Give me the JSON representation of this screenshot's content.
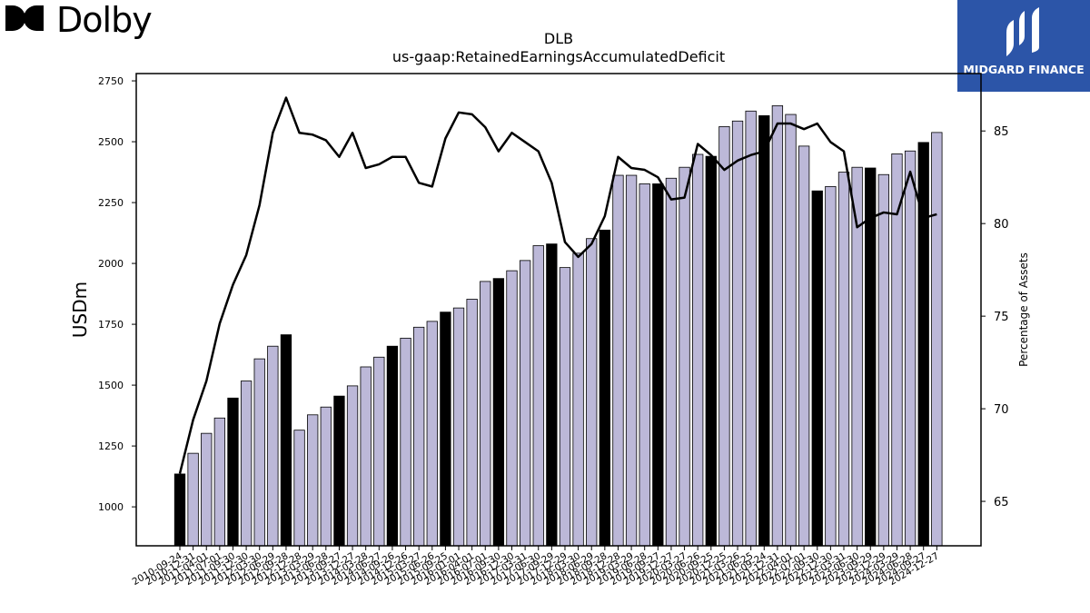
{
  "brand": {
    "company": "Dolby",
    "badge": "MIDGARD FINANCE"
  },
  "chart_data": {
    "type": "bar",
    "title": "DLB",
    "subtitle": "us-gaap:RetainedEarningsAccumulatedDeficit",
    "ylabel": "USDm",
    "y2label": "Percentage of Assets",
    "ylim": [
      840,
      2780
    ],
    "y2lim": [
      62.6,
      88.1
    ],
    "yticks": [
      1000,
      1250,
      1500,
      1750,
      2000,
      2250,
      2500,
      2750
    ],
    "y2ticks": [
      65,
      70,
      75,
      80,
      85
    ],
    "colors": {
      "quarter": "#bcb8d8",
      "annual": "#000000",
      "line": "#000000"
    },
    "categories": [
      "2010-09-24",
      "2010-12-31",
      "2011-04-01",
      "2011-07-01",
      "2011-09-30",
      "2011-12-30",
      "2012-03-30",
      "2012-06-29",
      "2012-09-28",
      "2012-12-28",
      "2013-03-29",
      "2013-06-28",
      "2013-09-27",
      "2013-12-27",
      "2014-03-28",
      "2014-06-27",
      "2014-09-26",
      "2014-12-26",
      "2015-03-27",
      "2015-06-26",
      "2015-09-25",
      "2016-01-01",
      "2016-04-01",
      "2016-07-01",
      "2016-09-30",
      "2016-12-30",
      "2017-03-31",
      "2017-06-30",
      "2017-09-29",
      "2017-12-29",
      "2018-03-30",
      "2018-06-29",
      "2018-09-28",
      "2018-12-28",
      "2019-03-29",
      "2019-06-28",
      "2019-09-27",
      "2019-12-27",
      "2020-03-27",
      "2020-06-26",
      "2020-09-25",
      "2020-12-25",
      "2021-03-26",
      "2021-06-25",
      "2021-09-24",
      "2021-12-31",
      "2022-04-01",
      "2022-07-01",
      "2022-09-30",
      "2022-12-30",
      "2023-03-31",
      "2023-06-30",
      "2023-09-29",
      "2023-12-29",
      "2024-03-29",
      "2024-06-28",
      "2024-09-27",
      "2024-12-27"
    ],
    "xtick_labels_shown": [
      "2010-09-24",
      "2010-12-31",
      "2011-04-01",
      "2011-07-01",
      "2011-09-30",
      "2011-12-30",
      "2012-03-30",
      "2012-06-29",
      "2012-09-28",
      "2012-12-28",
      "2013-03-29",
      "2013-06-28",
      "2013-09-27",
      "2013-12-27",
      "2014-03-28",
      "2014-06-27",
      "2014-09-26",
      "2014-12-26",
      "2015-03-27",
      "2015-06-26",
      "2015-09-25",
      "2016-01-01",
      "2016-04-01",
      "2016-07-01",
      "2016-09-30",
      "2016-12-30",
      "2017-03-31",
      "2017-06-30",
      "2017-09-29",
      "2017-12-29",
      "2018-03-30",
      "2018-06-29",
      "2018-09-28",
      "2018-12-28",
      "2019-03-29",
      "2019-06-28",
      "2019-09-27",
      "2019-12-27",
      "2020-03-27",
      "2020-06-26",
      "2020-09-25",
      "2020-12-25",
      "2021-03-26",
      "2021-06-25",
      "2021-09-24",
      "2021-12-31",
      "2022-04-01",
      "2022-07-01",
      "2022-09-30",
      "2022-12-30",
      "2023-03-31",
      "2023-06-30",
      "2023-09-29",
      "2023-12-29",
      "2024-03-29",
      "2024-06-28",
      "2024-09-27",
      "2024-12-27"
    ],
    "series": [
      {
        "values": [
          1135,
          1220,
          1302,
          1365,
          1447,
          1517,
          1608,
          1660,
          1707,
          1315,
          1378,
          1410,
          1455,
          1497,
          1575,
          1615,
          1660,
          1693,
          1738,
          1762,
          1800,
          1817,
          1853,
          1926,
          1938,
          1970,
          2012,
          2073,
          2080,
          1983,
          2042,
          2102,
          2137,
          2362,
          2362,
          2327,
          2327,
          2350,
          2395,
          2448,
          2440,
          2562,
          2585,
          2626,
          2607,
          2648,
          2612,
          2482,
          2298,
          2316,
          2375,
          2395,
          2392,
          2365,
          2450,
          2462,
          2497,
          2538
        ]
      },
      {
        "values": [
          66.5,
          69.4,
          71.5,
          74.6,
          76.7,
          78.3,
          81.0,
          84.9,
          86.8,
          84.9,
          84.8,
          84.5,
          83.6,
          84.9,
          83.0,
          83.2,
          83.6,
          83.6,
          82.2,
          82.0,
          84.6,
          86.0,
          85.9,
          85.2,
          83.9,
          84.9,
          84.4,
          83.9,
          82.2,
          79.0,
          78.2,
          78.9,
          80.4,
          83.6,
          83.0,
          82.9,
          82.5,
          81.3,
          81.4,
          84.3,
          83.7,
          82.9,
          83.4,
          83.7,
          83.9,
          85.4,
          85.4,
          85.1,
          85.4,
          84.4,
          83.9,
          79.8,
          80.3,
          80.6,
          80.5,
          82.8,
          80.3,
          80.5
        ]
      }
    ]
  }
}
